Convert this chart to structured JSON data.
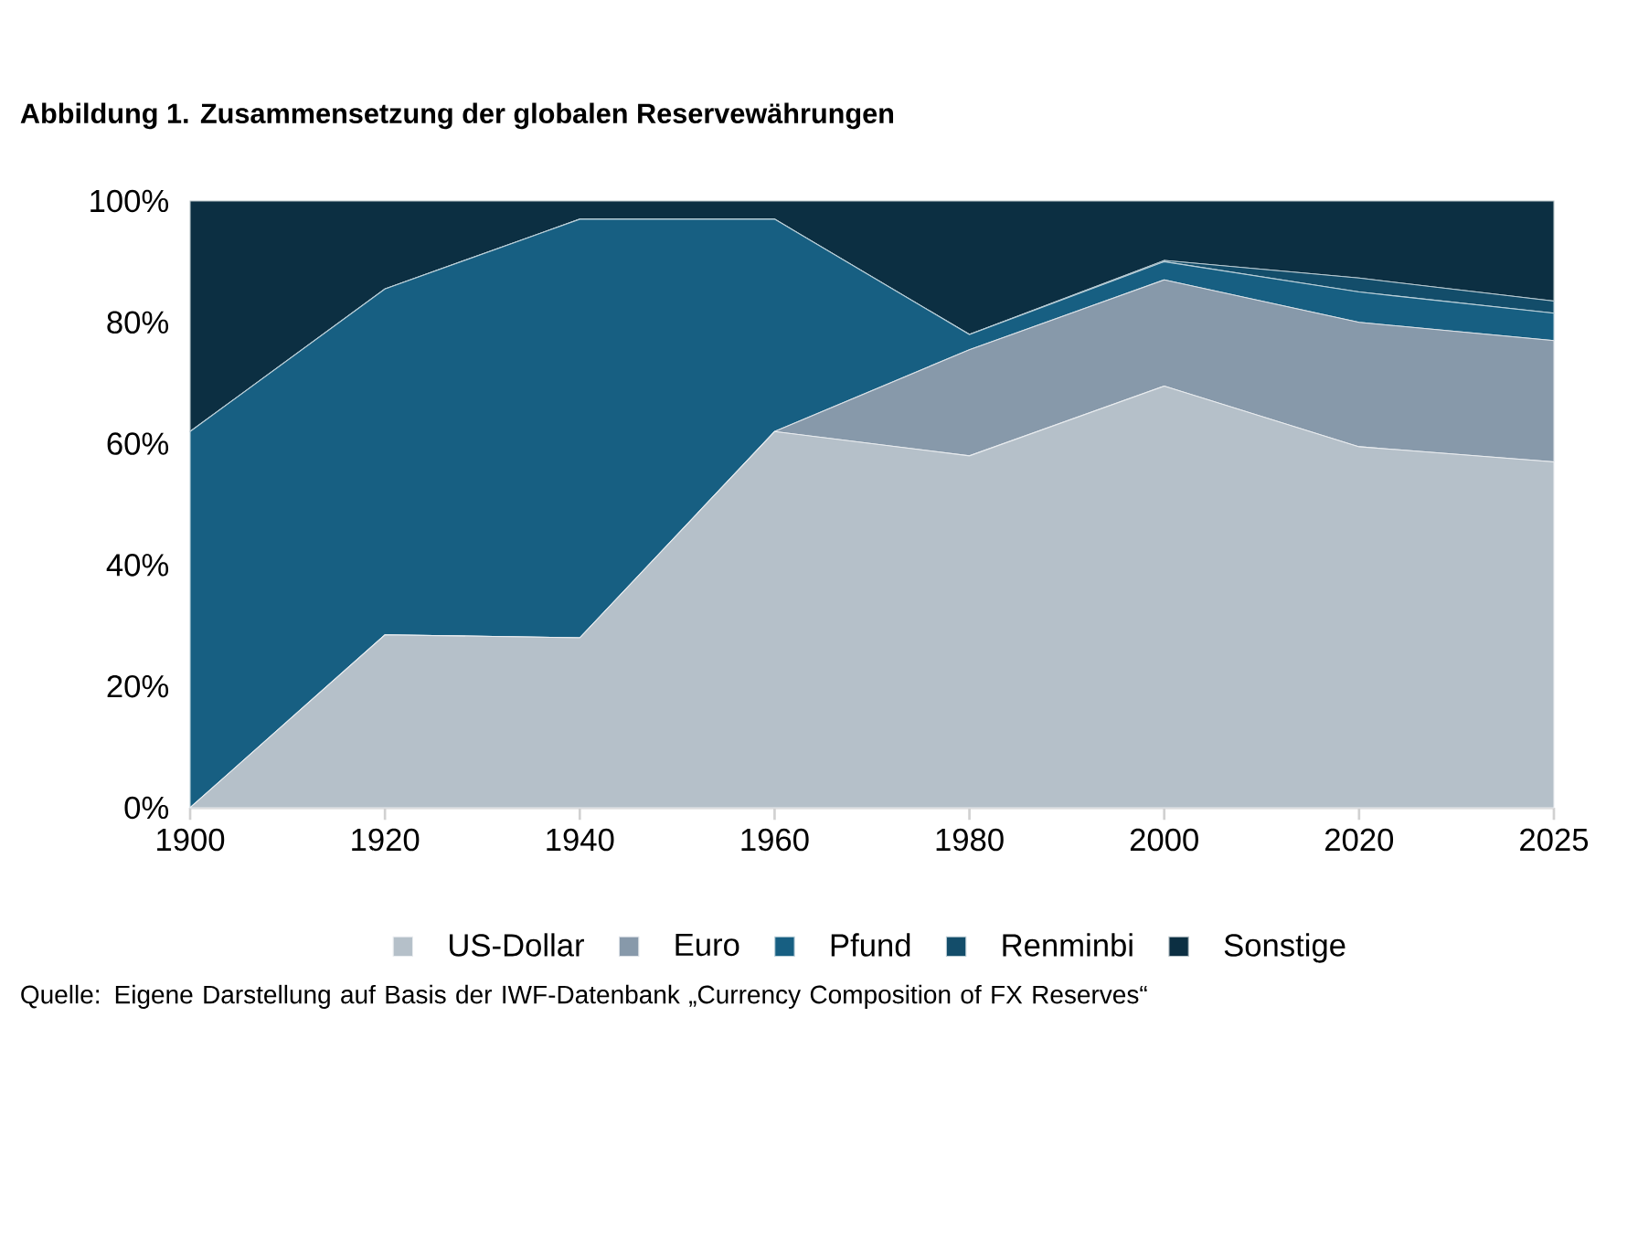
{
  "chart_data": {
    "type": "area",
    "stacked": true,
    "title": "Abbildung 1. Zusammensetzung der globalen Reservewährungen",
    "categories": [
      "1900",
      "1920",
      "1940",
      "1960",
      "1980",
      "2000",
      "2020",
      "2025"
    ],
    "series": [
      {
        "name": "US-Dollar",
        "color": "#b5c0c9",
        "values": [
          0,
          28.5,
          28,
          62,
          58,
          69.5,
          59.5,
          57
        ]
      },
      {
        "name": "Euro",
        "color": "#8799aa",
        "values": [
          0,
          0,
          0,
          0,
          17.5,
          17.5,
          20.5,
          20
        ]
      },
      {
        "name": "Pfund",
        "color": "#175f82",
        "values": [
          62,
          57,
          69,
          35,
          2.5,
          3,
          5,
          4.5
        ]
      },
      {
        "name": "Renminbi",
        "color": "#134d6a",
        "values": [
          0,
          0,
          0,
          0,
          0,
          0.2,
          2.3,
          2
        ]
      },
      {
        "name": "Sonstige",
        "color": "#0c2f42",
        "values": [
          38,
          14.5,
          3,
          3,
          22,
          9.8,
          12.7,
          16.5
        ]
      }
    ],
    "ylim": [
      0,
      100
    ],
    "yticks": [
      {
        "value": 0,
        "label": "0%"
      },
      {
        "value": 20,
        "label": "20%"
      },
      {
        "value": 40,
        "label": "40%"
      },
      {
        "value": 60,
        "label": "60%"
      },
      {
        "value": 80,
        "label": "80%"
      },
      {
        "value": 100,
        "label": "100%"
      }
    ],
    "grid": false,
    "legend": "bottom",
    "annotations": [
      "Quelle: Eigene Darstellung auf Basis der IWF-Datenbank „Currency Composition of FX Reserves“"
    ]
  }
}
